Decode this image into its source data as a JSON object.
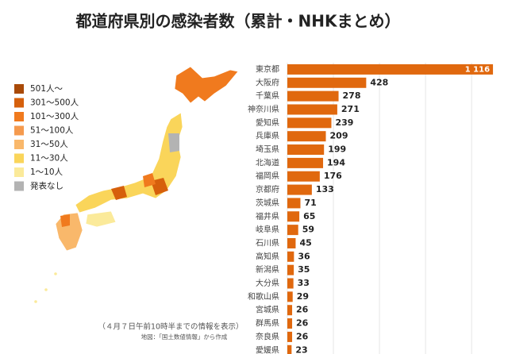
{
  "chart_data": {
    "type": "bar",
    "orientation": "horizontal",
    "title": "都道府県別の感染者数（累計・NHKまとめ）",
    "categories": [
      "東京都",
      "大阪府",
      "千葉県",
      "神奈川県",
      "愛知県",
      "兵庫県",
      "埼玉県",
      "北海道",
      "福岡県",
      "京都府",
      "茨城県",
      "福井県",
      "岐阜県",
      "石川県",
      "高知県",
      "新潟県",
      "大分県",
      "和歌山県",
      "宮城県",
      "群馬県",
      "奈良県",
      "愛媛県"
    ],
    "values": [
      1116,
      428,
      278,
      271,
      239,
      209,
      199,
      194,
      176,
      133,
      71,
      65,
      59,
      45,
      36,
      35,
      33,
      29,
      26,
      26,
      26,
      23
    ],
    "value_labels": [
      "1 116",
      "428",
      "278",
      "271",
      "239",
      "209",
      "199",
      "194",
      "176",
      "133",
      "71",
      "65",
      "59",
      "45",
      "36",
      "35",
      "33",
      "29",
      "26",
      "26",
      "26",
      "23"
    ],
    "color": "#e0680e",
    "xlim": [
      0,
      1120
    ],
    "xticks": [
      0,
      250,
      500,
      750,
      1000
    ],
    "grid": true,
    "legend": [
      {
        "label": "501人～",
        "color": "#a94a08"
      },
      {
        "label": "301～500人",
        "color": "#d6600c"
      },
      {
        "label": "101～300人",
        "color": "#f07a1e"
      },
      {
        "label": "51～100人",
        "color": "#f59a4e"
      },
      {
        "label": "31～50人",
        "color": "#f9b86b"
      },
      {
        "label": "11～30人",
        "color": "#fad55a"
      },
      {
        "label": "1～10人",
        "color": "#fbea9a"
      },
      {
        "label": "発表なし",
        "color": "#b3b3b3"
      }
    ],
    "note": "（４月７日午前10時半までの情報を表示）",
    "source": "地図：「国土数値情報」から作成"
  }
}
